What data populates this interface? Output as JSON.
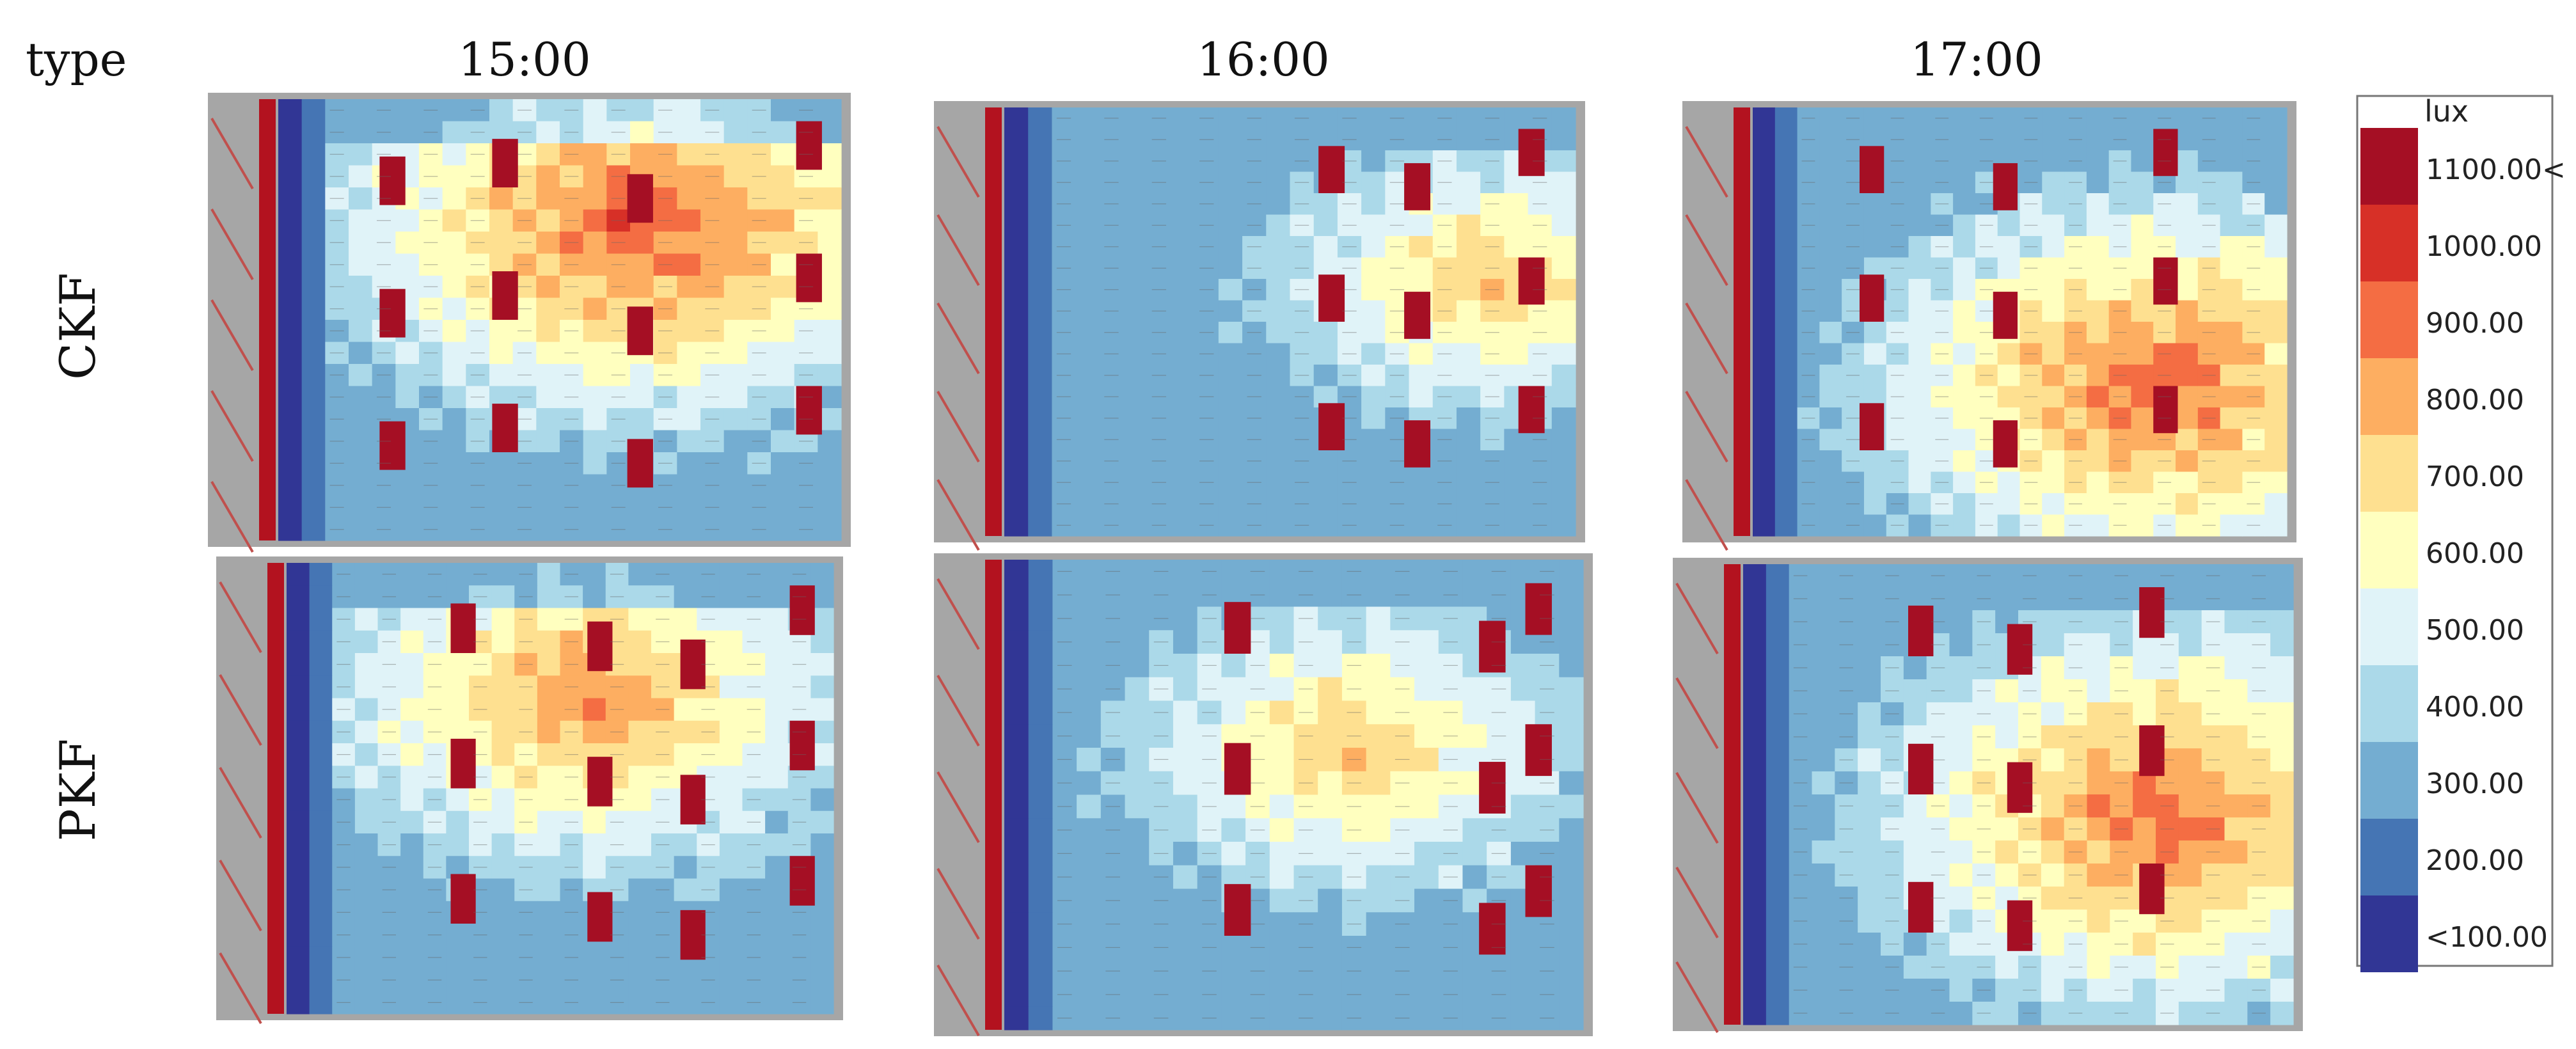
{
  "chart_data": {
    "type": "heatmap",
    "header_label": "type",
    "columns": [
      "15:00",
      "16:00",
      "17:00"
    ],
    "rows": [
      "CKF",
      "PKF"
    ],
    "legend": {
      "unit": "lux",
      "labels": [
        "1100.00<",
        "1000.00",
        "900.00",
        "800.00",
        "700.00",
        "600.00",
        "500.00",
        "400.00",
        "300.00",
        "200.00",
        "<100.00"
      ],
      "colors": [
        "#a50f24",
        "#d73027",
        "#f46d43",
        "#fdae61",
        "#fee090",
        "#ffffbf",
        "#e0f3f8",
        "#abd9e9",
        "#74add1",
        "#4575b4",
        "#313695"
      ],
      "thresholds": [
        1100,
        1000,
        900,
        800,
        700,
        600,
        500,
        400,
        300,
        200,
        100
      ]
    },
    "panels": [
      {
        "row": "CKF",
        "time": "15:00",
        "hotspot": [
          0.28,
          0.65
        ],
        "peak": 1000,
        "stripes": [
          0.92,
          0.38,
          0.18,
          0.62
        ]
      },
      {
        "row": "CKF",
        "time": "16:00",
        "hotspot": [
          0.4,
          0.85
        ],
        "peak": 800,
        "stripes": [
          0.9,
          0.55,
          0.7
        ]
      },
      {
        "row": "CKF",
        "time": "17:00",
        "hotspot": [
          0.65,
          0.75
        ],
        "peak": 980,
        "stripes": [
          0.75,
          0.2,
          0.45
        ]
      },
      {
        "row": "PKF",
        "time": "15:00",
        "hotspot": [
          0.3,
          0.55
        ],
        "peak": 900,
        "stripes": [
          0.92,
          0.3,
          0.55,
          0.72
        ]
      },
      {
        "row": "PKF",
        "time": "16:00",
        "hotspot": [
          0.4,
          0.6
        ],
        "peak": 800,
        "stripes": [
          0.9,
          0.38,
          0.82
        ]
      },
      {
        "row": "PKF",
        "time": "17:00",
        "hotspot": [
          0.55,
          0.75
        ],
        "peak": 960,
        "stripes": [
          0.72,
          0.3,
          0.48
        ]
      }
    ]
  }
}
